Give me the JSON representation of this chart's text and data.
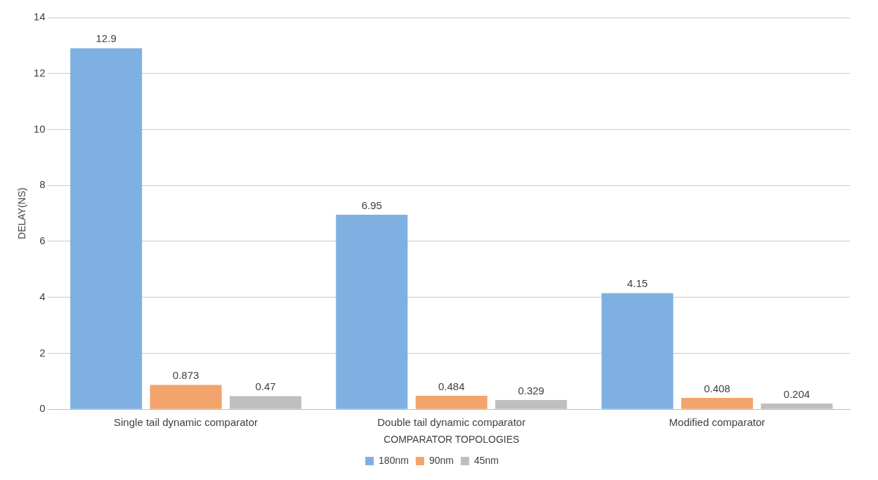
{
  "chart_data": {
    "type": "bar",
    "categories": [
      "Single tail dynamic comparator",
      "Double tail dynamic comparator",
      "Modified comparator"
    ],
    "series": [
      {
        "name": "180nm",
        "color": "#7fb0e2",
        "values": [
          12.9,
          6.95,
          4.15
        ]
      },
      {
        "name": "90nm",
        "color": "#f2a46c",
        "values": [
          0.873,
          0.484,
          0.408
        ]
      },
      {
        "name": "45nm",
        "color": "#bfbfbf",
        "values": [
          0.47,
          0.329,
          0.204
        ]
      }
    ],
    "xlabel": "COMPARATOR TOPOLOGIES",
    "ylabel": "DELAY(NS)",
    "ylim": [
      0,
      14
    ],
    "yticks": [
      0,
      2,
      4,
      6,
      8,
      10,
      12,
      14
    ],
    "grid": "y",
    "legend": "bottom",
    "data_labels": true
  }
}
